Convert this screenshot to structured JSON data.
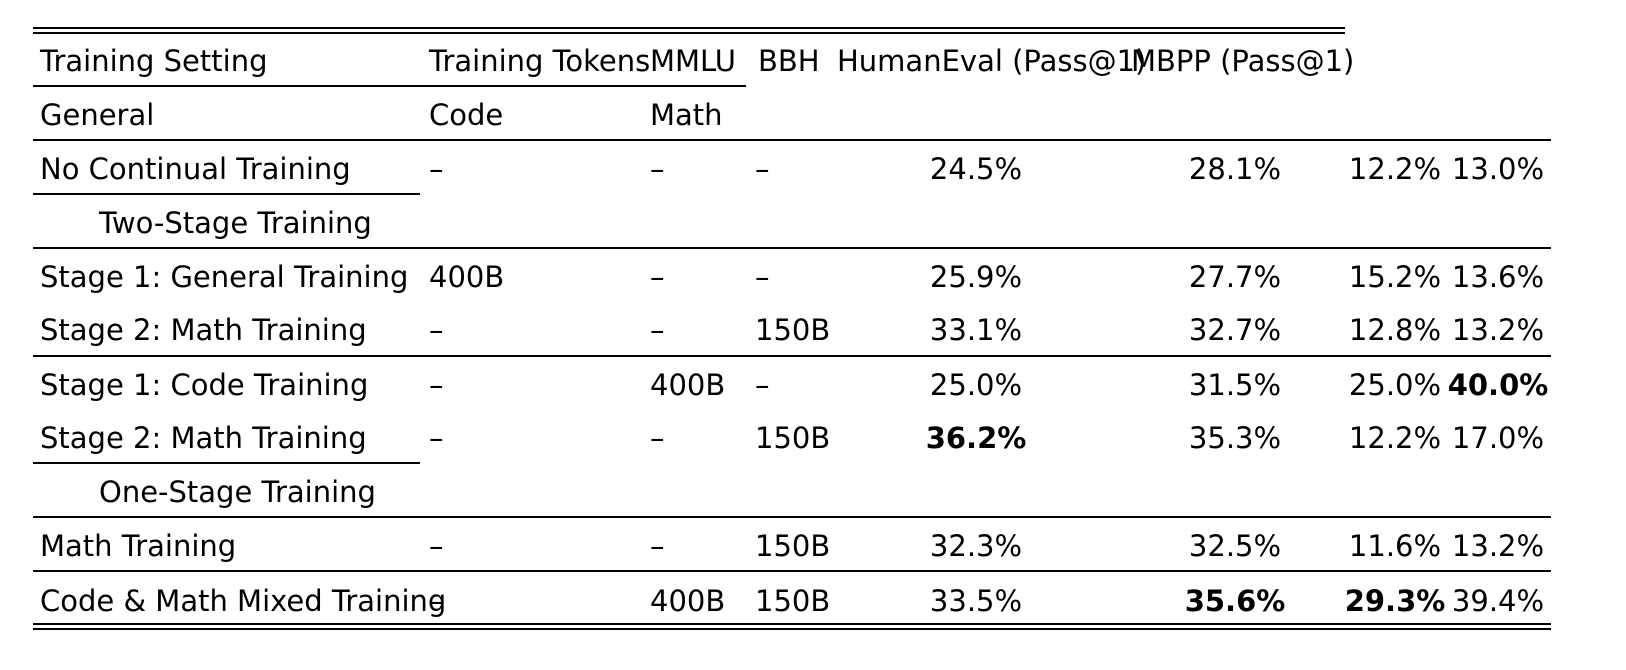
{
  "table": {
    "header_row1": [
      "Training Setting",
      "Training Tokens",
      "MMLU",
      "BBH",
      "HumanEval (Pass@1)",
      "MBPP (Pass@1)"
    ],
    "header_row2": [
      "General",
      "Code",
      "Math"
    ],
    "rows": [
      {
        "setting": "No Continual Training",
        "general": "–",
        "code": "–",
        "math": "–",
        "mmlu": "24.5%",
        "bbh": "28.1%",
        "humaneval": "12.2%",
        "mbpp": "13.0%"
      },
      {
        "section": "Two-Stage Training"
      },
      {
        "setting": "Stage 1: General Training",
        "general": "400B",
        "code": "–",
        "math": "–",
        "mmlu": "25.9%",
        "bbh": "27.7%",
        "humaneval": "15.2%",
        "mbpp": "13.6%"
      },
      {
        "setting": "Stage 2: Math Training",
        "general": "–",
        "code": "–",
        "math": "150B",
        "mmlu": "33.1%",
        "bbh": "32.7%",
        "humaneval": "12.8%",
        "mbpp": "13.2%"
      },
      {
        "setting": "Stage 1: Code Training",
        "general": "–",
        "code": "400B",
        "math": "–",
        "mmlu": "25.0%",
        "bbh": "31.5%",
        "humaneval": "25.0%",
        "mbpp": "40.0%"
      },
      {
        "setting": "Stage 2: Math Training",
        "general": "–",
        "code": "–",
        "math": "150B",
        "mmlu": "36.2%",
        "bbh": "35.3%",
        "humaneval": "12.2%",
        "mbpp": "17.0%"
      },
      {
        "section": "One-Stage Training"
      },
      {
        "setting": "Math Training",
        "general": "–",
        "code": "–",
        "math": "150B",
        "mmlu": "32.3%",
        "bbh": "32.5%",
        "humaneval": "11.6%",
        "mbpp": "13.2%"
      },
      {
        "setting": "Code & Math Mixed Training",
        "general": "–",
        "code": "400B",
        "math": "150B",
        "mmlu": "33.5%",
        "bbh": "35.6%",
        "humaneval": "29.3%",
        "mbpp": "39.4%"
      }
    ],
    "bold_cells": [
      "rows.4.mbpp",
      "rows.5.mmlu",
      "rows.8.bbh",
      "rows.8.humaneval"
    ]
  }
}
